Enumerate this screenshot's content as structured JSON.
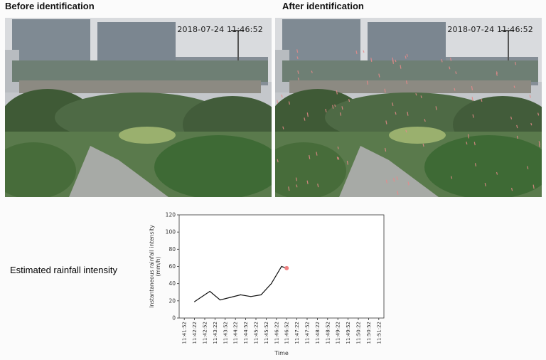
{
  "panels": {
    "before": {
      "title": "Before identification",
      "timestamp": "2018-07-24 11:46:52"
    },
    "after": {
      "title": "After identification",
      "timestamp": "2018-07-24 11:46:52"
    }
  },
  "estimate_label": "Estimated rainfall intensity",
  "colors": {
    "line": "#111111",
    "current_marker": "#f08080",
    "rain_marks_after": "#e88a8a"
  },
  "chart_data": {
    "type": "line",
    "title": "",
    "xlabel": "Time",
    "ylabel": "Instantaneous rainfall intensity (mm/h)",
    "ylim": [
      0,
      120
    ],
    "yticks": [
      0,
      20,
      40,
      60,
      80,
      100,
      120
    ],
    "categories": [
      "11:41:52",
      "11:42:22",
      "11:42:52",
      "11:43:22",
      "11:43:52",
      "11:44:22",
      "11:44:52",
      "11:45:22",
      "11:45:52",
      "11:46:22",
      "11:46:52",
      "11:47:22",
      "11:47:52",
      "11:48:22",
      "11:48:52",
      "11:49:22",
      "11:49:52",
      "11:50:22",
      "11:50:52",
      "11:51:22"
    ],
    "x": [
      "11:42:22",
      "11:43:07",
      "11:43:37",
      "11:44:07",
      "11:44:37",
      "11:45:07",
      "11:45:37",
      "11:46:07",
      "11:46:37",
      "11:46:52"
    ],
    "values": [
      19,
      31,
      21,
      24,
      27,
      25,
      27,
      40,
      60,
      58
    ],
    "current_point": {
      "x": "11:46:52",
      "y": 58
    },
    "grid": false,
    "legend": "none"
  }
}
